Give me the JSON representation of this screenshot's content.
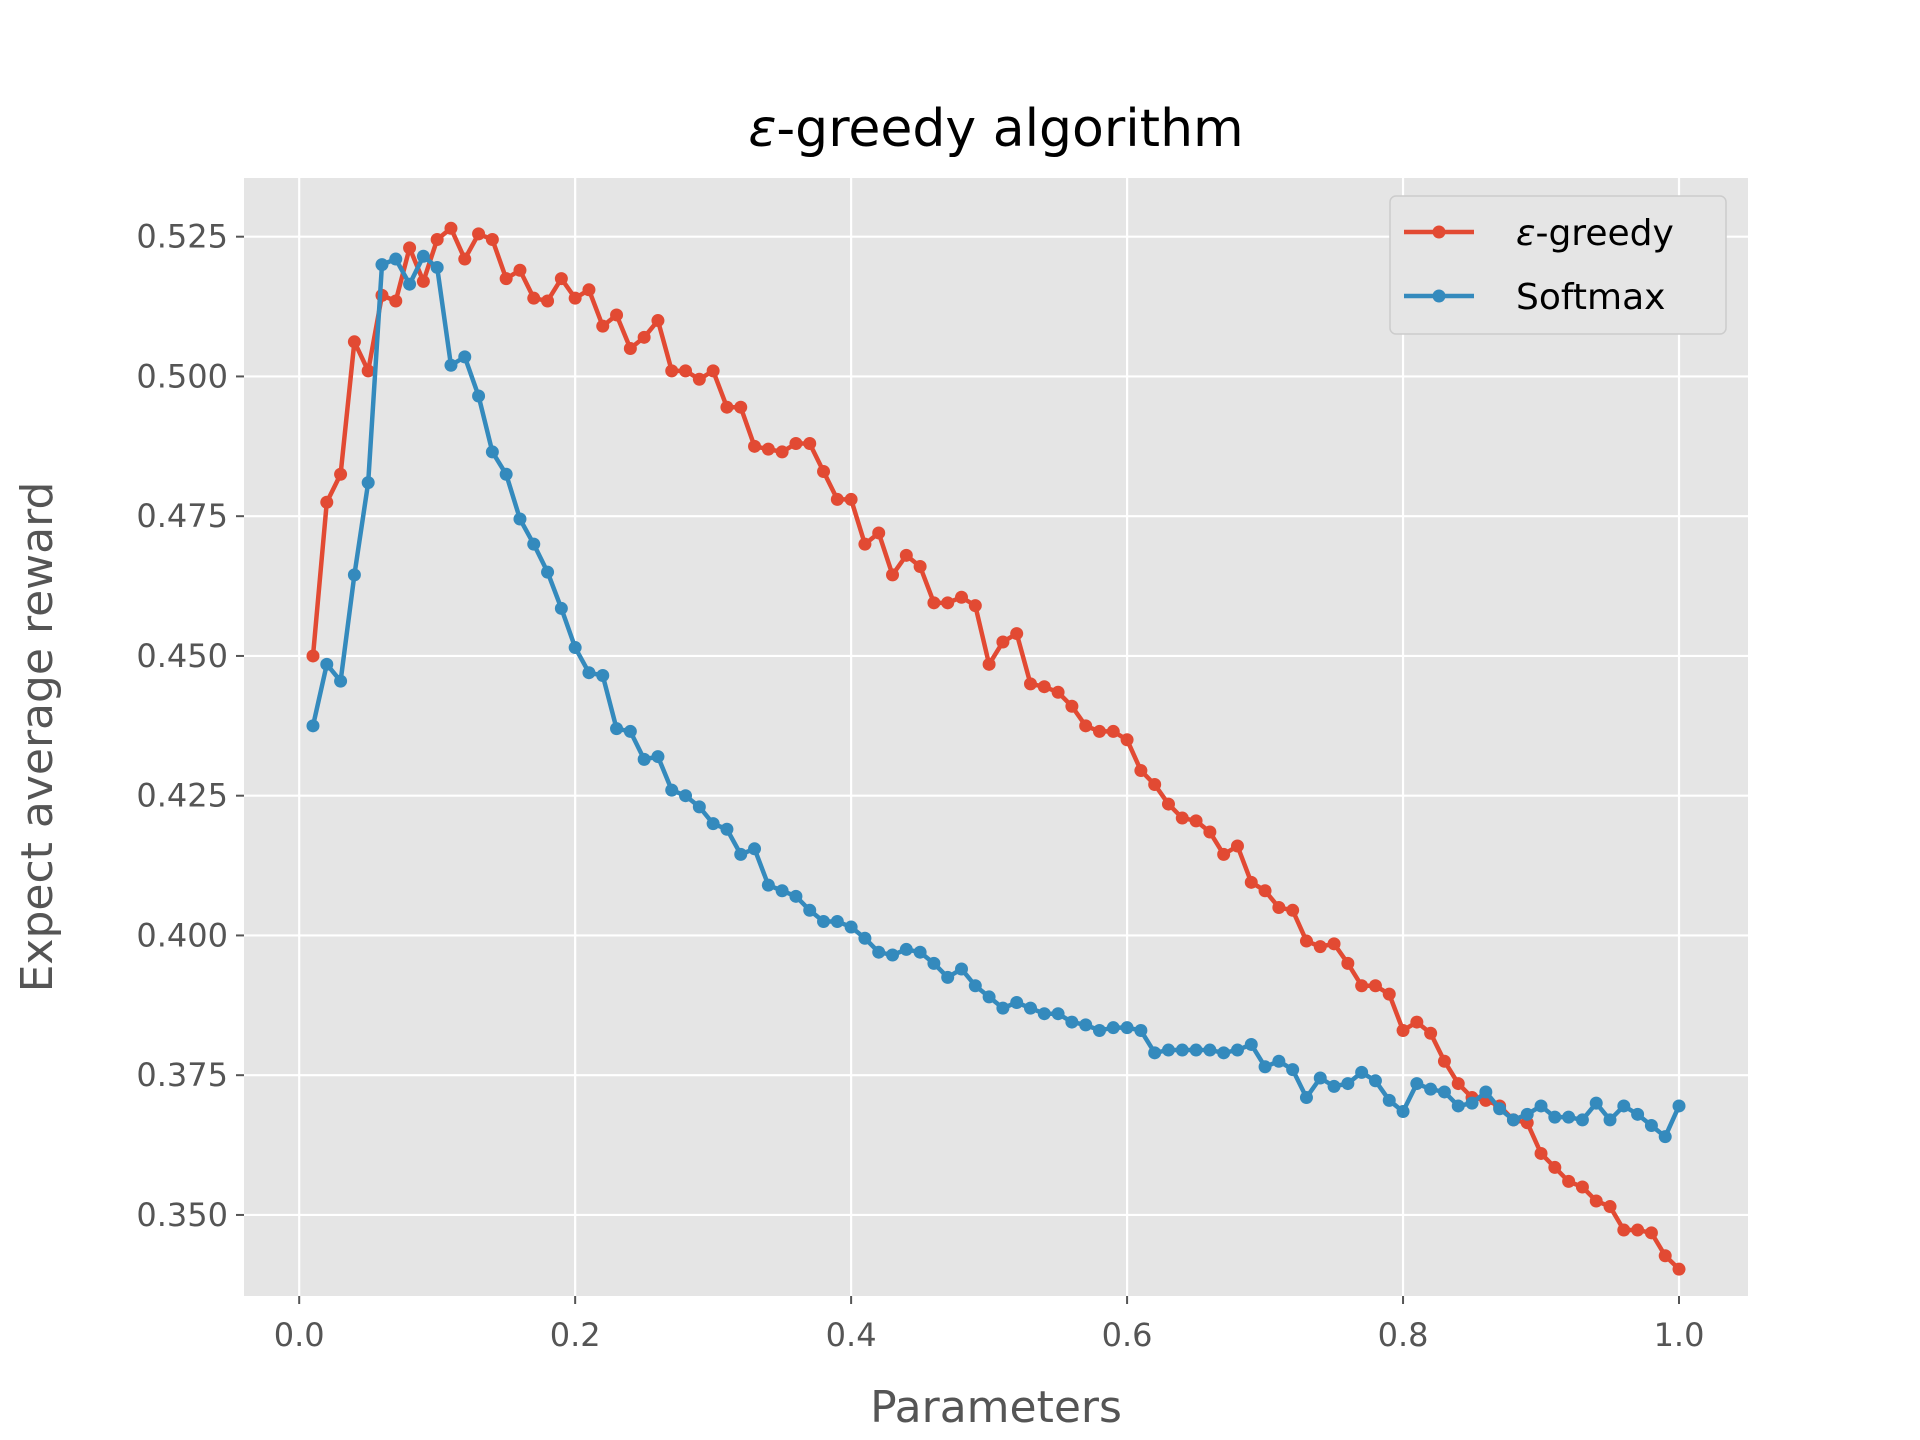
{
  "chart_data": {
    "type": "line",
    "title_prefix": "ε",
    "title_suffix": "-greedy algorithm",
    "xlabel": "Parameters",
    "ylabel": "Expect average reward",
    "xlim": [
      -0.04,
      1.05
    ],
    "ylim": [
      0.3355,
      0.5355
    ],
    "xticks": [
      0.0,
      0.2,
      0.4,
      0.6,
      0.8,
      1.0
    ],
    "xtick_labels": [
      "0.0",
      "0.2",
      "0.4",
      "0.6",
      "0.8",
      "1.0"
    ],
    "yticks": [
      0.35,
      0.375,
      0.4,
      0.425,
      0.45,
      0.475,
      0.5,
      0.525
    ],
    "ytick_labels": [
      "0.350",
      "0.375",
      "0.400",
      "0.425",
      "0.450",
      "0.475",
      "0.500",
      "0.525"
    ],
    "grid": true,
    "legend_position": "top-right",
    "x": [
      0.01,
      0.02,
      0.03,
      0.04,
      0.05,
      0.06,
      0.07,
      0.08,
      0.09,
      0.1,
      0.11,
      0.12,
      0.13,
      0.14,
      0.15,
      0.16,
      0.17,
      0.18,
      0.19,
      0.2,
      0.21,
      0.22,
      0.23,
      0.24,
      0.25,
      0.26,
      0.27,
      0.28,
      0.29,
      0.3,
      0.31,
      0.32,
      0.33,
      0.34,
      0.35,
      0.36,
      0.37,
      0.38,
      0.39,
      0.4,
      0.41,
      0.42,
      0.43,
      0.44,
      0.45,
      0.46,
      0.47,
      0.48,
      0.49,
      0.5,
      0.51,
      0.52,
      0.53,
      0.54,
      0.55,
      0.56,
      0.57,
      0.58,
      0.59,
      0.6,
      0.61,
      0.62,
      0.63,
      0.64,
      0.65,
      0.66,
      0.67,
      0.68,
      0.69,
      0.7,
      0.71,
      0.72,
      0.73,
      0.74,
      0.75,
      0.76,
      0.77,
      0.78,
      0.79,
      0.8,
      0.81,
      0.82,
      0.83,
      0.84,
      0.85,
      0.86,
      0.87,
      0.88,
      0.89,
      0.9,
      0.91,
      0.92,
      0.93,
      0.94,
      0.95,
      0.96,
      0.97,
      0.98,
      0.99,
      1.0
    ],
    "series": [
      {
        "name": "ε-greedy",
        "name_prefix": "ε",
        "name_suffix": "-greedy",
        "color": "#E24A33",
        "values": [
          0.45,
          0.4775,
          0.4825,
          0.5062,
          0.501,
          0.5145,
          0.5135,
          0.523,
          0.517,
          0.5245,
          0.5265,
          0.521,
          0.5255,
          0.5245,
          0.5175,
          0.519,
          0.514,
          0.5135,
          0.5175,
          0.514,
          0.5155,
          0.509,
          0.511,
          0.505,
          0.507,
          0.51,
          0.501,
          0.501,
          0.4995,
          0.501,
          0.4945,
          0.4945,
          0.4875,
          0.487,
          0.4865,
          0.488,
          0.488,
          0.483,
          0.478,
          0.478,
          0.47,
          0.472,
          0.4645,
          0.468,
          0.466,
          0.4595,
          0.4595,
          0.4605,
          0.459,
          0.4485,
          0.4525,
          0.454,
          0.445,
          0.4445,
          0.4435,
          0.441,
          0.4375,
          0.4365,
          0.4365,
          0.435,
          0.4295,
          0.427,
          0.4235,
          0.421,
          0.4205,
          0.4185,
          0.4145,
          0.416,
          0.4095,
          0.408,
          0.405,
          0.4045,
          0.399,
          0.398,
          0.3985,
          0.395,
          0.391,
          0.391,
          0.3895,
          0.383,
          0.3845,
          0.3825,
          0.3775,
          0.3735,
          0.371,
          0.3705,
          0.3695,
          0.367,
          0.3665,
          0.361,
          0.3585,
          0.356,
          0.355,
          0.3525,
          0.3515,
          0.3473,
          0.3473,
          0.3468,
          0.3427,
          0.3403
        ]
      },
      {
        "name": "Softmax",
        "name_prefix": "",
        "name_suffix": "Softmax",
        "color": "#348ABD",
        "values": [
          0.4375,
          0.4485,
          0.4455,
          0.4645,
          0.481,
          0.52,
          0.521,
          0.5165,
          0.5215,
          0.5195,
          0.502,
          0.5035,
          0.4965,
          0.4865,
          0.4825,
          0.4745,
          0.47,
          0.465,
          0.4585,
          0.4515,
          0.447,
          0.4465,
          0.437,
          0.4365,
          0.4315,
          0.432,
          0.426,
          0.425,
          0.423,
          0.42,
          0.419,
          0.4145,
          0.4155,
          0.409,
          0.408,
          0.407,
          0.4045,
          0.4025,
          0.4025,
          0.4015,
          0.3995,
          0.397,
          0.3965,
          0.3975,
          0.397,
          0.395,
          0.3925,
          0.394,
          0.391,
          0.389,
          0.387,
          0.388,
          0.387,
          0.386,
          0.386,
          0.3845,
          0.384,
          0.383,
          0.3835,
          0.3835,
          0.383,
          0.379,
          0.3795,
          0.3795,
          0.3795,
          0.3795,
          0.379,
          0.3795,
          0.3805,
          0.3765,
          0.3775,
          0.376,
          0.371,
          0.3745,
          0.373,
          0.3735,
          0.3755,
          0.374,
          0.3705,
          0.3685,
          0.3735,
          0.3725,
          0.372,
          0.3695,
          0.37,
          0.372,
          0.369,
          0.367,
          0.368,
          0.3695,
          0.3675,
          0.3675,
          0.367,
          0.37,
          0.367,
          0.3695,
          0.368,
          0.366,
          0.364,
          0.3695
        ]
      }
    ]
  }
}
